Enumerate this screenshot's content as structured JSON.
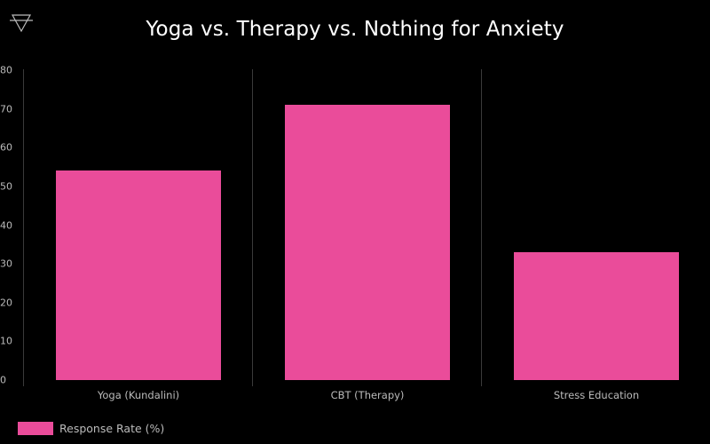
{
  "logo": {
    "icon": "earth-triangle-icon"
  },
  "title": "Yoga vs. Therapy vs. Nothing for Anxiety",
  "colors": {
    "bar": "#ea4c9a",
    "background": "#000000",
    "text": "#bbbbbb",
    "title": "#ffffff",
    "gridline": "#3a3a3a"
  },
  "y_axis": {
    "ticks": [
      "0",
      "10",
      "20",
      "30",
      "40",
      "50",
      "60",
      "70",
      "80"
    ]
  },
  "x_axis": {
    "labels": [
      "Yoga (Kundalini)",
      "CBT (Therapy)",
      "Stress Education"
    ]
  },
  "legend": {
    "label": "Response Rate (%)"
  },
  "chart_data": {
    "type": "bar",
    "title": "Yoga vs. Therapy vs. Nothing for Anxiety",
    "categories": [
      "Yoga (Kundalini)",
      "CBT (Therapy)",
      "Stress Education"
    ],
    "series": [
      {
        "name": "Response Rate (%)",
        "values": [
          54,
          71,
          33
        ]
      }
    ],
    "xlabel": "",
    "ylabel": "",
    "ylim": [
      0,
      80
    ],
    "yticks": [
      0,
      10,
      20,
      30,
      40,
      50,
      60,
      70,
      80
    ],
    "grid": false,
    "legend_position": "bottom-left"
  }
}
